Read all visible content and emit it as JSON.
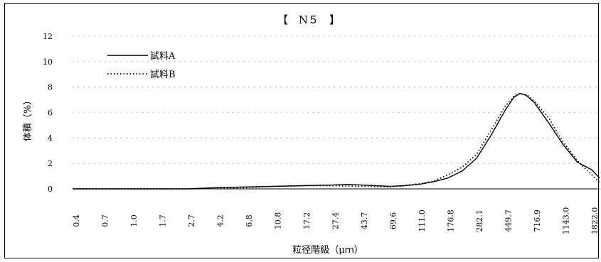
{
  "chart_data": {
    "type": "line",
    "title": "【　N５　】",
    "xlabel": "粒径階級（μｍ）",
    "ylabel": "体積（%）",
    "ylim": [
      0,
      12
    ],
    "y_ticks": [
      0,
      2,
      4,
      6,
      8,
      10,
      12
    ],
    "grid": true,
    "legend_position": "top-left",
    "categories": [
      "0.4",
      "0.7",
      "1.0",
      "1.7",
      "2.7",
      "4.2",
      "6.8",
      "10.8",
      "17.2",
      "27.4",
      "43.7",
      "69.6",
      "111.0",
      "176.8",
      "282.1",
      "449.7",
      "716.9",
      "1143.0",
      "1822.0"
    ],
    "series": [
      {
        "name": "試料A",
        "style": "solid",
        "color": "#000000",
        "points": [
          [
            0.0,
            0.0
          ],
          [
            1.0,
            0.0
          ],
          [
            2.0,
            0.0
          ],
          [
            3.0,
            0.0
          ],
          [
            4.0,
            0.0
          ],
          [
            4.5,
            0.05
          ],
          [
            5.0,
            0.1
          ],
          [
            6.0,
            0.15
          ],
          [
            7.0,
            0.2
          ],
          [
            8.0,
            0.25
          ],
          [
            9.0,
            0.3
          ],
          [
            9.5,
            0.35
          ],
          [
            10.0,
            0.3
          ],
          [
            10.5,
            0.25
          ],
          [
            11.0,
            0.2
          ],
          [
            11.5,
            0.25
          ],
          [
            12.0,
            0.35
          ],
          [
            12.5,
            0.55
          ],
          [
            13.0,
            0.85
          ],
          [
            13.5,
            1.4
          ],
          [
            14.0,
            2.4
          ],
          [
            14.5,
            4.2
          ],
          [
            15.0,
            6.2
          ],
          [
            15.3,
            7.2
          ],
          [
            15.5,
            7.5
          ],
          [
            15.7,
            7.4
          ],
          [
            16.0,
            6.8
          ],
          [
            16.5,
            5.2
          ],
          [
            17.0,
            3.5
          ],
          [
            17.5,
            2.1
          ],
          [
            18.0,
            1.5
          ],
          [
            18.3,
            0.8
          ],
          [
            18.6,
            0.1
          ],
          [
            19.0,
            0.0
          ]
        ]
      },
      {
        "name": "試料B",
        "style": "dotted",
        "color": "#000000",
        "points": [
          [
            0.0,
            0.0
          ],
          [
            1.0,
            0.0
          ],
          [
            2.0,
            0.0
          ],
          [
            3.0,
            0.0
          ],
          [
            4.0,
            0.0
          ],
          [
            5.0,
            0.05
          ],
          [
            6.0,
            0.1
          ],
          [
            7.0,
            0.2
          ],
          [
            8.0,
            0.25
          ],
          [
            9.0,
            0.25
          ],
          [
            10.0,
            0.2
          ],
          [
            11.0,
            0.15
          ],
          [
            11.5,
            0.25
          ],
          [
            12.0,
            0.4
          ],
          [
            12.5,
            0.6
          ],
          [
            13.0,
            1.1
          ],
          [
            13.5,
            1.7
          ],
          [
            14.0,
            2.7
          ],
          [
            14.5,
            4.6
          ],
          [
            15.0,
            6.5
          ],
          [
            15.3,
            7.3
          ],
          [
            15.5,
            7.5
          ],
          [
            15.8,
            7.3
          ],
          [
            16.0,
            6.9
          ],
          [
            16.5,
            5.6
          ],
          [
            17.0,
            3.7
          ],
          [
            17.5,
            2.2
          ],
          [
            18.0,
            1.1
          ],
          [
            18.4,
            0.2
          ],
          [
            18.6,
            0.0
          ],
          [
            19.0,
            0.0
          ]
        ]
      }
    ]
  }
}
